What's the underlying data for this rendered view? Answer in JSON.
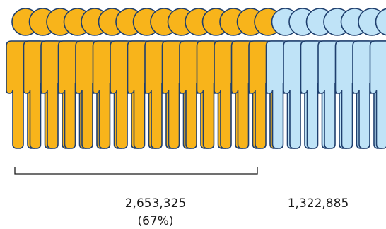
{
  "chart_data": {
    "type": "pictogram",
    "title": "",
    "groups": [
      {
        "value": 2653325,
        "value_label": "2,653,325",
        "percent_label": "(67%)",
        "icon_count": 15,
        "color": "#F8B41B"
      },
      {
        "value": 1322885,
        "value_label": "1,322,885",
        "percent_label": "",
        "icon_count": 7,
        "color": "#BFE3F7"
      }
    ],
    "bracket_under": "group-a",
    "outline_color": "#1F3F6E"
  }
}
